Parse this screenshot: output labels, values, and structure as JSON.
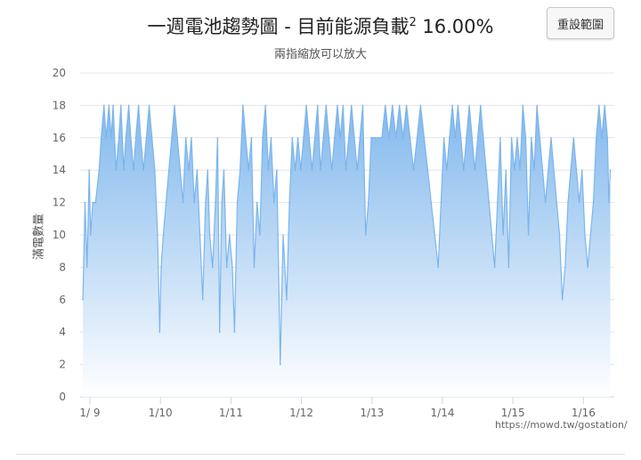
{
  "header": {
    "title_main": "一週電池趨勢圖 - 目前能源負載",
    "title_sup": "2",
    "title_value": " 16.00%",
    "subtitle": "兩指縮放可以放大",
    "reset_label": "重設範圍"
  },
  "credit": "https://mowd.tw/gostation/",
  "colors": {
    "line": "#7cb5ec",
    "fill_top": "#7cb5ec",
    "fill_bottom": "#ffffff",
    "grid": "#e6e6e6",
    "axis": "#ccd6eb"
  },
  "chart_data": {
    "type": "area",
    "title": "一週電池趨勢圖 - 目前能源負載2 16.00%",
    "subtitle": "兩指縮放可以放大",
    "xlabel": "",
    "ylabel": "滿電數量",
    "ylim": [
      0,
      20
    ],
    "yticks": [
      "0",
      "2",
      "4",
      "6",
      "8",
      "10",
      "12",
      "14",
      "16",
      "18",
      "20"
    ],
    "xlim": [
      0,
      7.38
    ],
    "xticks": [
      {
        "x": 0,
        "label": "1/ 9"
      },
      {
        "x": 1,
        "label": "1/10"
      },
      {
        "x": 2,
        "label": "1/11"
      },
      {
        "x": 3,
        "label": "1/12"
      },
      {
        "x": 4,
        "label": "1/13"
      },
      {
        "x": 5,
        "label": "1/14"
      },
      {
        "x": 6,
        "label": "1/15"
      },
      {
        "x": 7,
        "label": "1/16"
      }
    ],
    "grid": true,
    "legend": "none",
    "series": [
      {
        "values": [
          [
            -0.1,
            6
          ],
          [
            -0.07,
            12
          ],
          [
            -0.04,
            8
          ],
          [
            -0.01,
            14
          ],
          [
            0.01,
            10
          ],
          [
            0.04,
            12
          ],
          [
            0.08,
            12
          ],
          [
            0.13,
            14
          ],
          [
            0.16,
            16
          ],
          [
            0.2,
            18
          ],
          [
            0.23,
            16
          ],
          [
            0.27,
            18
          ],
          [
            0.3,
            16
          ],
          [
            0.33,
            18
          ],
          [
            0.37,
            14
          ],
          [
            0.41,
            16
          ],
          [
            0.44,
            18
          ],
          [
            0.48,
            14
          ],
          [
            0.51,
            16
          ],
          [
            0.55,
            18
          ],
          [
            0.58,
            16
          ],
          [
            0.62,
            14
          ],
          [
            0.65,
            16
          ],
          [
            0.69,
            18
          ],
          [
            0.72,
            16
          ],
          [
            0.76,
            14
          ],
          [
            0.8,
            16
          ],
          [
            0.84,
            18
          ],
          [
            0.88,
            16
          ],
          [
            0.92,
            14
          ],
          [
            0.96,
            10
          ],
          [
            0.99,
            4
          ],
          [
            1.01,
            8
          ],
          [
            1.04,
            10
          ],
          [
            1.08,
            12
          ],
          [
            1.12,
            14
          ],
          [
            1.16,
            16
          ],
          [
            1.2,
            18
          ],
          [
            1.24,
            16
          ],
          [
            1.28,
            14
          ],
          [
            1.32,
            12
          ],
          [
            1.36,
            16
          ],
          [
            1.4,
            14
          ],
          [
            1.44,
            16
          ],
          [
            1.48,
            12
          ],
          [
            1.52,
            14
          ],
          [
            1.56,
            10
          ],
          [
            1.6,
            6
          ],
          [
            1.64,
            12
          ],
          [
            1.67,
            14
          ],
          [
            1.7,
            10
          ],
          [
            1.74,
            8
          ],
          [
            1.78,
            12
          ],
          [
            1.81,
            16
          ],
          [
            1.84,
            4
          ],
          [
            1.87,
            12
          ],
          [
            1.9,
            14
          ],
          [
            1.94,
            8
          ],
          [
            1.98,
            10
          ],
          [
            2.02,
            8
          ],
          [
            2.05,
            4
          ],
          [
            2.09,
            12
          ],
          [
            2.13,
            14
          ],
          [
            2.17,
            18
          ],
          [
            2.21,
            16
          ],
          [
            2.25,
            14
          ],
          [
            2.29,
            16
          ],
          [
            2.33,
            8
          ],
          [
            2.37,
            12
          ],
          [
            2.41,
            10
          ],
          [
            2.45,
            16
          ],
          [
            2.49,
            18
          ],
          [
            2.53,
            14
          ],
          [
            2.57,
            16
          ],
          [
            2.61,
            12
          ],
          [
            2.65,
            14
          ],
          [
            2.7,
            2
          ],
          [
            2.74,
            10
          ],
          [
            2.79,
            6
          ],
          [
            2.83,
            12
          ],
          [
            2.87,
            16
          ],
          [
            2.91,
            14
          ],
          [
            2.95,
            16
          ],
          [
            2.99,
            14
          ],
          [
            3.03,
            16
          ],
          [
            3.07,
            18
          ],
          [
            3.11,
            16
          ],
          [
            3.15,
            14
          ],
          [
            3.19,
            16
          ],
          [
            3.23,
            18
          ],
          [
            3.27,
            14
          ],
          [
            3.31,
            16
          ],
          [
            3.35,
            18
          ],
          [
            3.39,
            16
          ],
          [
            3.43,
            14
          ],
          [
            3.47,
            16
          ],
          [
            3.51,
            18
          ],
          [
            3.55,
            16
          ],
          [
            3.59,
            18
          ],
          [
            3.63,
            14
          ],
          [
            3.67,
            16
          ],
          [
            3.71,
            18
          ],
          [
            3.75,
            16
          ],
          [
            3.79,
            14
          ],
          [
            3.83,
            16
          ],
          [
            3.87,
            18
          ],
          [
            3.91,
            10
          ],
          [
            3.95,
            12
          ],
          [
            3.99,
            16
          ],
          [
            4.04,
            16
          ],
          [
            4.09,
            16
          ],
          [
            4.14,
            16
          ],
          [
            4.19,
            18
          ],
          [
            4.24,
            16
          ],
          [
            4.29,
            18
          ],
          [
            4.34,
            16
          ],
          [
            4.39,
            18
          ],
          [
            4.44,
            16
          ],
          [
            4.49,
            18
          ],
          [
            4.54,
            16
          ],
          [
            4.59,
            14
          ],
          [
            4.64,
            16
          ],
          [
            4.69,
            18
          ],
          [
            4.74,
            16
          ],
          [
            4.79,
            14
          ],
          [
            4.84,
            12
          ],
          [
            4.89,
            10
          ],
          [
            4.94,
            8
          ],
          [
            4.98,
            12
          ],
          [
            5.02,
            16
          ],
          [
            5.06,
            14
          ],
          [
            5.1,
            16
          ],
          [
            5.14,
            18
          ],
          [
            5.18,
            16
          ],
          [
            5.22,
            18
          ],
          [
            5.26,
            16
          ],
          [
            5.3,
            14
          ],
          [
            5.34,
            16
          ],
          [
            5.38,
            18
          ],
          [
            5.42,
            16
          ],
          [
            5.46,
            14
          ],
          [
            5.5,
            16
          ],
          [
            5.54,
            18
          ],
          [
            5.58,
            16
          ],
          [
            5.62,
            14
          ],
          [
            5.66,
            12
          ],
          [
            5.7,
            10
          ],
          [
            5.74,
            8
          ],
          [
            5.78,
            12
          ],
          [
            5.82,
            16
          ],
          [
            5.86,
            10
          ],
          [
            5.9,
            14
          ],
          [
            5.94,
            8
          ],
          [
            5.98,
            16
          ],
          [
            6.02,
            14
          ],
          [
            6.06,
            16
          ],
          [
            6.1,
            14
          ],
          [
            6.14,
            18
          ],
          [
            6.18,
            16
          ],
          [
            6.22,
            10
          ],
          [
            6.26,
            16
          ],
          [
            6.3,
            14
          ],
          [
            6.34,
            18
          ],
          [
            6.38,
            16
          ],
          [
            6.42,
            14
          ],
          [
            6.46,
            12
          ],
          [
            6.5,
            14
          ],
          [
            6.54,
            16
          ],
          [
            6.58,
            14
          ],
          [
            6.62,
            12
          ],
          [
            6.66,
            10
          ],
          [
            6.7,
            6
          ],
          [
            6.74,
            8
          ],
          [
            6.78,
            12
          ],
          [
            6.82,
            14
          ],
          [
            6.86,
            16
          ],
          [
            6.9,
            14
          ],
          [
            6.94,
            12
          ],
          [
            6.98,
            14
          ],
          [
            7.02,
            10
          ],
          [
            7.06,
            8
          ],
          [
            7.1,
            10
          ],
          [
            7.14,
            12
          ],
          [
            7.18,
            16
          ],
          [
            7.22,
            18
          ],
          [
            7.26,
            16
          ],
          [
            7.3,
            18
          ],
          [
            7.34,
            16
          ],
          [
            7.36,
            12
          ],
          [
            7.38,
            14
          ]
        ]
      }
    ]
  }
}
